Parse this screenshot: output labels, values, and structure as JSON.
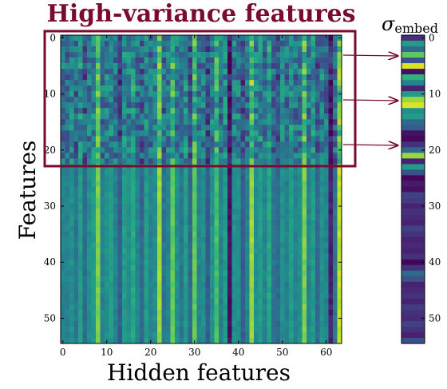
{
  "chart_data": [
    {
      "type": "heatmap",
      "title": "High-variance features",
      "xlabel": "Hidden features",
      "ylabel": "Features",
      "n_cols": 64,
      "n_rows": 55,
      "xlim": [
        0,
        63
      ],
      "ylim": [
        0,
        54
      ],
      "x_ticks": [
        0,
        10,
        20,
        30,
        40,
        50,
        60
      ],
      "y_ticks": [
        0,
        10,
        20,
        30,
        40,
        50
      ],
      "colormap": "viridis",
      "high_variance_rows": [
        0,
        22
      ],
      "column_profile": [
        0.45,
        0.45,
        0.5,
        0.4,
        0.55,
        0.35,
        0.5,
        0.55,
        0.8,
        0.45,
        0.5,
        0.55,
        0.45,
        0.3,
        0.55,
        0.5,
        0.6,
        0.45,
        0.35,
        0.55,
        0.45,
        0.5,
        0.85,
        0.4,
        0.45,
        0.75,
        0.5,
        0.4,
        0.55,
        0.35,
        0.75,
        0.45,
        0.5,
        0.3,
        0.5,
        0.7,
        0.45,
        0.55,
        0.05,
        0.5,
        0.5,
        0.3,
        0.45,
        0.85,
        0.5,
        0.55,
        0.45,
        0.6,
        0.4,
        0.35,
        0.5,
        0.45,
        0.55,
        0.45,
        0.5,
        0.8,
        0.45,
        0.55,
        0.35,
        0.5,
        0.45,
        0.1,
        0.4,
        0.9
      ]
    },
    {
      "type": "heatmap",
      "title": "σ_embed",
      "title_symbol": "σ",
      "title_sub": "embed",
      "n_rows": 55,
      "ylim": [
        0,
        54
      ],
      "y_ticks": [
        0,
        10,
        20,
        30,
        40,
        50
      ],
      "colormap": "viridis",
      "values": [
        0.15,
        0.55,
        0.35,
        0.75,
        0.25,
        0.95,
        0.05,
        0.65,
        0.45,
        0.1,
        0.55,
        0.85,
        0.95,
        0.5,
        0.55,
        0.35,
        0.3,
        0.05,
        0.02,
        0.15,
        0.35,
        0.85,
        0.1,
        0.55,
        0.25,
        0.02,
        0.08,
        0.05,
        0.2,
        0.18,
        0.1,
        0.15,
        0.12,
        0.1,
        0.2,
        0.15,
        0.1,
        0.12,
        0.1,
        0.15,
        0.02,
        0.15,
        0.35,
        0.25,
        0.1,
        0.12,
        0.15,
        0.1,
        0.18,
        0.15,
        0.12,
        0.2,
        0.15,
        0.1,
        0.25
      ]
    }
  ]
}
